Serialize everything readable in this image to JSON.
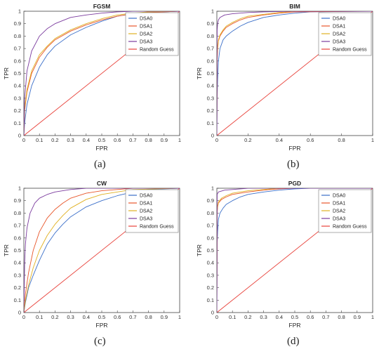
{
  "chart_data": [
    {
      "type": "line",
      "title": "FGSM",
      "xlabel": "FPR",
      "ylabel": "TPR",
      "xlim": [
        0,
        1
      ],
      "ylim": [
        0,
        1
      ],
      "xticks": [
        "0",
        "0.1",
        "0.2",
        "0.3",
        "0.4",
        "0.5",
        "0.6",
        "0.7",
        "0.8",
        "0.9",
        "1"
      ],
      "yticks": [
        "0",
        "0.1",
        "0.2",
        "0.3",
        "0.4",
        "0.5",
        "0.6",
        "0.7",
        "0.8",
        "0.9",
        "1"
      ],
      "caption": "(a)",
      "legend_position": "top-right",
      "series": [
        {
          "name": "DSA0",
          "color": "#3b6fc9",
          "x": [
            0,
            0.005,
            0.02,
            0.05,
            0.1,
            0.15,
            0.2,
            0.3,
            0.4,
            0.5,
            0.6,
            0.7,
            0.8,
            1
          ],
          "y": [
            0,
            0.1,
            0.25,
            0.4,
            0.55,
            0.65,
            0.72,
            0.81,
            0.87,
            0.92,
            0.96,
            0.98,
            0.99,
            1
          ]
        },
        {
          "name": "DSA1",
          "color": "#e8562a",
          "x": [
            0,
            0.005,
            0.02,
            0.05,
            0.1,
            0.15,
            0.2,
            0.3,
            0.4,
            0.5,
            0.6,
            0.7,
            0.8,
            1
          ],
          "y": [
            0,
            0.2,
            0.35,
            0.5,
            0.63,
            0.71,
            0.77,
            0.84,
            0.89,
            0.93,
            0.96,
            0.98,
            0.99,
            1
          ]
        },
        {
          "name": "DSA2",
          "color": "#e0b020",
          "x": [
            0,
            0.005,
            0.02,
            0.05,
            0.1,
            0.15,
            0.2,
            0.3,
            0.4,
            0.5,
            0.6,
            0.7,
            0.8,
            1
          ],
          "y": [
            0,
            0.22,
            0.37,
            0.52,
            0.65,
            0.72,
            0.78,
            0.85,
            0.9,
            0.94,
            0.97,
            0.985,
            0.995,
            1
          ]
        },
        {
          "name": "DSA3",
          "color": "#7b3b9e",
          "x": [
            0,
            0.005,
            0.02,
            0.05,
            0.1,
            0.15,
            0.2,
            0.3,
            0.4,
            0.5,
            0.6,
            0.7,
            1
          ],
          "y": [
            0,
            0.3,
            0.52,
            0.68,
            0.8,
            0.86,
            0.9,
            0.95,
            0.97,
            0.985,
            0.995,
            1,
            1
          ]
        },
        {
          "name": "Random Guess",
          "color": "#e8413a",
          "x": [
            0,
            1
          ],
          "y": [
            0,
            1
          ]
        }
      ]
    },
    {
      "type": "line",
      "title": "BIM",
      "xlabel": "FPR",
      "ylabel": "TPR",
      "xlim": [
        0,
        1
      ],
      "ylim": [
        0,
        1
      ],
      "xticks": [
        "0",
        "0.2",
        "0.4",
        "0.6",
        "0.8",
        "1"
      ],
      "yticks": [
        "0",
        "0.1",
        "0.2",
        "0.3",
        "0.4",
        "0.5",
        "0.6",
        "0.7",
        "0.8",
        "0.9",
        "1"
      ],
      "caption": "(b)",
      "legend_position": "top-right",
      "series": [
        {
          "name": "DSA0",
          "color": "#3b6fc9",
          "x": [
            0,
            0.002,
            0.005,
            0.01,
            0.02,
            0.04,
            0.06,
            0.1,
            0.15,
            0.2,
            0.3,
            0.4,
            0.5,
            0.6,
            1
          ],
          "y": [
            0,
            0.3,
            0.45,
            0.6,
            0.7,
            0.77,
            0.8,
            0.84,
            0.88,
            0.91,
            0.95,
            0.97,
            0.985,
            0.995,
            1
          ]
        },
        {
          "name": "DSA1",
          "color": "#e8562a",
          "x": [
            0,
            0.002,
            0.005,
            0.01,
            0.02,
            0.04,
            0.06,
            0.1,
            0.15,
            0.2,
            0.3,
            0.4,
            0.5,
            1
          ],
          "y": [
            0,
            0.6,
            0.7,
            0.76,
            0.8,
            0.84,
            0.87,
            0.9,
            0.93,
            0.95,
            0.97,
            0.985,
            0.995,
            1
          ]
        },
        {
          "name": "DSA2",
          "color": "#e0b020",
          "x": [
            0,
            0.002,
            0.005,
            0.01,
            0.02,
            0.04,
            0.06,
            0.1,
            0.15,
            0.2,
            0.3,
            0.4,
            0.5,
            1
          ],
          "y": [
            0,
            0.65,
            0.72,
            0.77,
            0.81,
            0.85,
            0.88,
            0.91,
            0.94,
            0.96,
            0.975,
            0.99,
            1,
            1
          ]
        },
        {
          "name": "DSA3",
          "color": "#7b3b9e",
          "x": [
            0,
            0.002,
            0.005,
            0.01,
            0.02,
            0.05,
            0.1,
            0.2,
            0.3,
            0.5,
            1
          ],
          "y": [
            0,
            0.85,
            0.9,
            0.93,
            0.95,
            0.97,
            0.98,
            0.99,
            0.995,
            1,
            1
          ]
        },
        {
          "name": "Random Guess",
          "color": "#e8413a",
          "x": [
            0,
            1
          ],
          "y": [
            0,
            1
          ]
        }
      ]
    },
    {
      "type": "line",
      "title": "CW",
      "xlabel": "FPR",
      "ylabel": "TPR",
      "xlim": [
        0,
        1
      ],
      "ylim": [
        0,
        1
      ],
      "xticks": [
        "0",
        "0.1",
        "0.2",
        "0.3",
        "0.4",
        "0.5",
        "0.6",
        "0.7",
        "0.8",
        "0.9",
        "1"
      ],
      "yticks": [
        "0",
        "0.1",
        "0.2",
        "0.3",
        "0.4",
        "0.5",
        "0.6",
        "0.7",
        "0.8",
        "0.9",
        "1"
      ],
      "caption": "(c)",
      "legend_position": "top-right",
      "series": [
        {
          "name": "DSA0",
          "color": "#3b6fc9",
          "x": [
            0,
            0.01,
            0.03,
            0.06,
            0.1,
            0.15,
            0.2,
            0.25,
            0.3,
            0.4,
            0.5,
            0.6,
            0.7,
            0.8,
            1
          ],
          "y": [
            0,
            0.08,
            0.2,
            0.3,
            0.42,
            0.55,
            0.64,
            0.71,
            0.77,
            0.85,
            0.9,
            0.94,
            0.97,
            0.99,
            1
          ]
        },
        {
          "name": "DSA1",
          "color": "#e8562a",
          "x": [
            0,
            0.01,
            0.03,
            0.06,
            0.1,
            0.15,
            0.2,
            0.25,
            0.3,
            0.4,
            0.5,
            0.6,
            0.7,
            1
          ],
          "y": [
            0,
            0.15,
            0.32,
            0.5,
            0.65,
            0.76,
            0.83,
            0.88,
            0.92,
            0.96,
            0.98,
            0.99,
            1,
            1
          ]
        },
        {
          "name": "DSA2",
          "color": "#e0b020",
          "x": [
            0,
            0.01,
            0.03,
            0.06,
            0.1,
            0.15,
            0.2,
            0.25,
            0.3,
            0.4,
            0.5,
            0.6,
            0.7,
            1
          ],
          "y": [
            0,
            0.1,
            0.22,
            0.36,
            0.5,
            0.62,
            0.71,
            0.78,
            0.84,
            0.91,
            0.95,
            0.97,
            0.99,
            1
          ]
        },
        {
          "name": "DSA3",
          "color": "#7b3b9e",
          "x": [
            0,
            0.005,
            0.01,
            0.02,
            0.04,
            0.07,
            0.1,
            0.15,
            0.2,
            0.3,
            0.4,
            1
          ],
          "y": [
            0,
            0.4,
            0.55,
            0.68,
            0.8,
            0.88,
            0.92,
            0.95,
            0.97,
            0.99,
            1,
            1
          ]
        },
        {
          "name": "Random Guess",
          "color": "#e8413a",
          "x": [
            0,
            1
          ],
          "y": [
            0,
            1
          ]
        }
      ]
    },
    {
      "type": "line",
      "title": "PGD",
      "xlabel": "FPR",
      "ylabel": "TPR",
      "xlim": [
        0,
        1
      ],
      "ylim": [
        0,
        1
      ],
      "xticks": [
        "0",
        "0.1",
        "0.2",
        "0.3",
        "0.4",
        "0.5",
        "0.6",
        "0.7",
        "0.8",
        "0.9",
        "1"
      ],
      "yticks": [
        "0",
        "0.1",
        "0.2",
        "0.3",
        "0.4",
        "0.5",
        "0.6",
        "0.7",
        "0.8",
        "0.9",
        "1"
      ],
      "caption": "(d)",
      "legend_position": "top-right",
      "series": [
        {
          "name": "DSA0",
          "color": "#3b6fc9",
          "x": [
            0,
            0.002,
            0.005,
            0.01,
            0.02,
            0.04,
            0.06,
            0.1,
            0.15,
            0.2,
            0.3,
            0.4,
            0.5,
            0.6,
            1
          ],
          "y": [
            0,
            0.55,
            0.65,
            0.75,
            0.8,
            0.84,
            0.87,
            0.9,
            0.93,
            0.95,
            0.97,
            0.985,
            0.995,
            1,
            1
          ]
        },
        {
          "name": "DSA1",
          "color": "#e8562a",
          "x": [
            0,
            0.002,
            0.005,
            0.01,
            0.03,
            0.06,
            0.1,
            0.2,
            0.3,
            0.4,
            0.5,
            1
          ],
          "y": [
            0,
            0.8,
            0.85,
            0.88,
            0.91,
            0.93,
            0.95,
            0.97,
            0.985,
            0.995,
            1,
            1
          ]
        },
        {
          "name": "DSA2",
          "color": "#e0b020",
          "x": [
            0,
            0.002,
            0.005,
            0.01,
            0.03,
            0.06,
            0.1,
            0.2,
            0.3,
            0.4,
            1
          ],
          "y": [
            0,
            0.82,
            0.86,
            0.89,
            0.92,
            0.94,
            0.96,
            0.98,
            0.99,
            1,
            1
          ]
        },
        {
          "name": "DSA3",
          "color": "#7b3b9e",
          "x": [
            0,
            0.002,
            0.01,
            0.05,
            0.1,
            0.2,
            1
          ],
          "y": [
            0,
            0.95,
            0.97,
            0.985,
            0.99,
            1,
            1
          ]
        },
        {
          "name": "Random Guess",
          "color": "#e8413a",
          "x": [
            0,
            1
          ],
          "y": [
            0,
            1
          ]
        }
      ]
    }
  ]
}
